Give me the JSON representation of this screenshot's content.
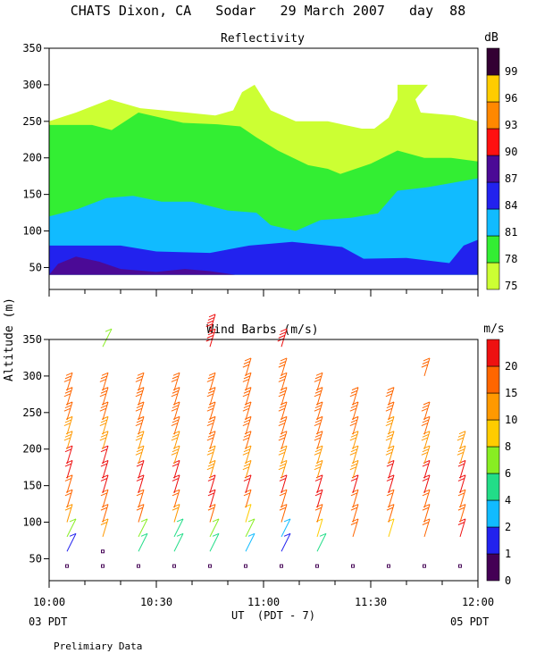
{
  "header": {
    "title": "CHATS Dixon, CA   Sodar   29 March 2007   day  88"
  },
  "footer": {
    "left_time_label": "03 PDT",
    "right_time_label": "05 PDT",
    "x_axis_label": "UT  (PDT - 7)",
    "note": "Prelimiary Data"
  },
  "chart_data": [
    {
      "type": "heatmap",
      "title": "Reflectivity",
      "ylabel": "",
      "ylim": [
        20,
        350
      ],
      "yticks": [
        50,
        100,
        150,
        200,
        250,
        300,
        350
      ],
      "xlim": [
        "10:00",
        "12:00"
      ],
      "colorbar": {
        "unit": "dB",
        "labels": [
          "75",
          "78",
          "81",
          "84",
          "87",
          "90",
          "93",
          "96",
          "99"
        ],
        "colors": [
          "#ccff33",
          "#33ee33",
          "#11bbff",
          "#2222ee",
          "#4b0a96",
          "#ff1010",
          "#ff8800",
          "#ffcc00",
          "#330033"
        ]
      },
      "contours": [
        {
          "level": "75",
          "color": "#ccff33",
          "boundary": [
            [
              0,
              250
            ],
            [
              15,
              262
            ],
            [
              34,
              280
            ],
            [
              51,
              268
            ],
            [
              77,
              262
            ],
            [
              93,
              258
            ],
            [
              103,
              265
            ],
            [
              108,
              290
            ],
            [
              115,
              300
            ],
            [
              124,
              265
            ],
            [
              138,
              250
            ],
            [
              156,
              250
            ],
            [
              175,
              240
            ],
            [
              182,
              240
            ],
            [
              190,
              255
            ],
            [
              195,
              280
            ],
            [
              195,
              300
            ],
            [
              212,
              300
            ],
            [
              205,
              280
            ],
            [
              208,
              262
            ],
            [
              227,
              258
            ],
            [
              240,
              250
            ],
            [
              240,
              40
            ],
            [
              0,
              40
            ]
          ]
        },
        {
          "level": "78",
          "color": "#33ee33",
          "boundary": [
            [
              0,
              245
            ],
            [
              24,
              245
            ],
            [
              35,
              238
            ],
            [
              50,
              262
            ],
            [
              75,
              248
            ],
            [
              94,
              246
            ],
            [
              107,
              243
            ],
            [
              116,
              228
            ],
            [
              128,
              210
            ],
            [
              145,
              190
            ],
            [
              156,
              185
            ],
            [
              163,
              178
            ],
            [
              180,
              192
            ],
            [
              195,
              210
            ],
            [
              210,
              200
            ],
            [
              225,
              200
            ],
            [
              240,
              195
            ],
            [
              240,
              40
            ],
            [
              0,
              40
            ]
          ]
        },
        {
          "level": "81",
          "color": "#11bbff",
          "boundary": [
            [
              0,
              120
            ],
            [
              16,
              130
            ],
            [
              32,
              145
            ],
            [
              47,
              148
            ],
            [
              63,
              140
            ],
            [
              80,
              140
            ],
            [
              100,
              128
            ],
            [
              116,
              125
            ],
            [
              124,
              108
            ],
            [
              138,
              100
            ],
            [
              152,
              115
            ],
            [
              169,
              118
            ],
            [
              184,
              124
            ],
            [
              195,
              155
            ],
            [
              212,
              160
            ],
            [
              240,
              172
            ],
            [
              240,
              40
            ],
            [
              0,
              40
            ]
          ]
        },
        {
          "level": "84",
          "color": "#2222ee",
          "boundary": [
            [
              0,
              80
            ],
            [
              40,
              80
            ],
            [
              60,
              72
            ],
            [
              90,
              70
            ],
            [
              112,
              80
            ],
            [
              136,
              85
            ],
            [
              164,
              78
            ],
            [
              176,
              62
            ],
            [
              200,
              63
            ],
            [
              224,
              56
            ],
            [
              232,
              80
            ],
            [
              240,
              88
            ],
            [
              240,
              40
            ],
            [
              0,
              40
            ]
          ]
        },
        {
          "level": "87",
          "color": "#4b0a96",
          "boundary": [
            [
              0,
              40
            ],
            [
              5,
              55
            ],
            [
              15,
              65
            ],
            [
              28,
              58
            ],
            [
              40,
              48
            ],
            [
              60,
              44
            ],
            [
              76,
              48
            ],
            [
              90,
              45
            ],
            [
              104,
              40
            ],
            [
              240,
              40
            ]
          ]
        }
      ]
    },
    {
      "type": "scatter",
      "title": "Wind Barbs (m/s)",
      "ylabel": "Altitude (m)",
      "ylim": [
        20,
        350
      ],
      "yticks": [
        50,
        100,
        150,
        200,
        250,
        300,
        350
      ],
      "x_tick_labels": [
        "10:00",
        "10:30",
        "11:00",
        "11:30",
        "12:00"
      ],
      "xlim": [
        "10:00",
        "12:00"
      ],
      "colorbar": {
        "unit": "m/s",
        "labels": [
          "0",
          "1",
          "2",
          "4",
          "6",
          "8",
          "10",
          "15",
          "20"
        ],
        "colors": [
          "#440055",
          "#2222ee",
          "#11bbff",
          "#22dd88",
          "#88ee22",
          "#ffcc00",
          "#ff9900",
          "#ff6600",
          "#ee1111"
        ]
      },
      "profile_times_min": [
        5,
        15,
        25,
        35,
        45,
        55,
        65,
        75,
        85,
        95,
        105,
        115
      ],
      "levels_m": [
        40,
        60,
        80,
        100,
        120,
        140,
        160,
        180,
        200,
        220,
        240,
        260,
        280,
        300,
        320,
        340,
        360
      ],
      "speed_classes": [
        [
          0,
          1,
          4,
          6,
          7,
          7,
          8,
          8,
          9,
          9,
          10,
          11,
          11,
          null,
          null,
          null,
          null
        ],
        [
          0,
          0,
          6,
          7,
          7,
          8,
          8,
          8,
          9,
          9,
          10,
          11,
          11,
          null,
          null,
          4,
          null
        ],
        [
          0,
          3,
          4,
          7,
          7,
          8,
          8,
          9,
          9,
          10,
          10,
          11,
          11,
          null,
          null,
          null,
          null
        ],
        [
          0,
          3,
          3,
          6,
          7,
          8,
          8,
          9,
          9,
          10,
          10,
          11,
          11,
          null,
          null,
          null,
          null
        ],
        [
          0,
          3,
          4,
          7,
          8,
          8,
          9,
          9,
          10,
          10,
          11,
          11,
          11,
          null,
          null,
          12,
          12
        ],
        [
          0,
          2,
          4,
          5,
          7,
          8,
          9,
          9,
          10,
          10,
          11,
          11,
          11,
          11,
          null,
          null,
          null
        ],
        [
          0,
          1,
          2,
          7,
          7,
          8,
          9,
          9,
          10,
          10,
          11,
          11,
          11,
          11,
          null,
          12,
          null
        ],
        [
          0,
          3,
          5,
          7,
          8,
          8,
          9,
          9,
          10,
          10,
          11,
          11,
          11,
          null,
          null,
          null,
          null
        ],
        [
          0,
          null,
          7,
          7,
          7,
          8,
          9,
          9,
          9,
          10,
          10,
          10,
          null,
          null,
          null,
          null,
          null
        ],
        [
          0,
          null,
          5,
          7,
          7,
          8,
          8,
          9,
          9,
          9,
          10,
          10,
          null,
          null,
          null,
          null,
          null
        ],
        [
          0,
          null,
          7,
          7,
          7,
          8,
          8,
          9,
          9,
          10,
          10,
          null,
          null,
          10,
          null,
          null,
          null
        ],
        [
          0,
          null,
          8,
          7,
          7,
          8,
          8,
          9,
          9,
          null,
          null,
          null,
          null,
          null,
          null,
          null,
          null
        ]
      ]
    }
  ]
}
